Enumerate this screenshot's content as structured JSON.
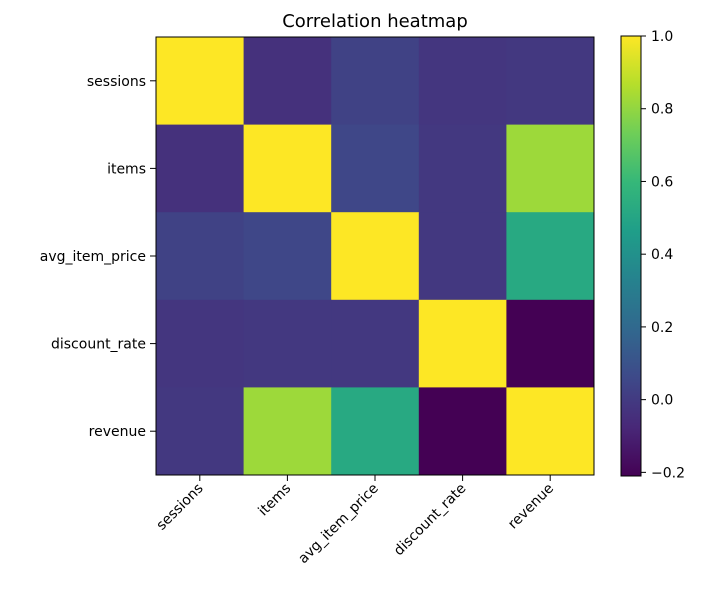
{
  "chart_data": {
    "type": "heatmap",
    "title": "Correlation heatmap",
    "row_labels": [
      "sessions",
      "items",
      "avg_item_price",
      "discount_rate",
      "revenue"
    ],
    "col_labels": [
      "sessions",
      "items",
      "avg_item_price",
      "discount_rate",
      "revenue"
    ],
    "values": [
      [
        1.0,
        -0.04,
        0.03,
        -0.02,
        -0.01
      ],
      [
        -0.04,
        1.0,
        0.05,
        -0.01,
        0.82
      ],
      [
        0.03,
        0.05,
        1.0,
        -0.01,
        0.52
      ],
      [
        -0.02,
        -0.01,
        -0.01,
        1.0,
        -0.21
      ],
      [
        -0.01,
        0.82,
        0.52,
        -0.21,
        1.0
      ]
    ],
    "colorbar": {
      "min": -0.21,
      "max": 1.0,
      "ticks": [
        -0.2,
        0.0,
        0.2,
        0.4,
        0.6,
        0.8,
        1.0
      ],
      "tick_labels": [
        "−0.2",
        "0.0",
        "0.2",
        "0.4",
        "0.6",
        "0.8",
        "1.0"
      ]
    },
    "colormap": "viridis",
    "colormap_stops": [
      "#440154",
      "#482878",
      "#3e4989",
      "#31688e",
      "#26828e",
      "#1f9e89",
      "#35b779",
      "#6ece58",
      "#b5de2b",
      "#fde725"
    ],
    "grid": false,
    "xtick_rotation": "45 degrees"
  }
}
